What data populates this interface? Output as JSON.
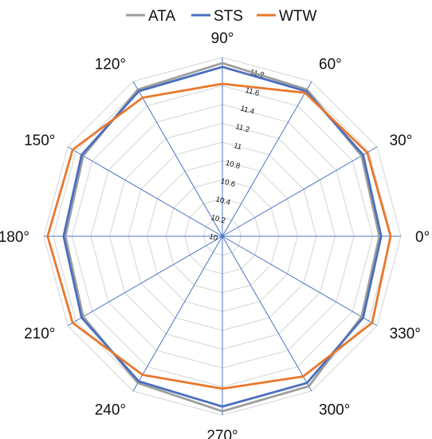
{
  "chart_data": {
    "type": "radar",
    "categories": [
      "0°",
      "30°",
      "60°",
      "90°",
      "120°",
      "150°",
      "180°",
      "210°",
      "240°",
      "270°",
      "300°",
      "330°"
    ],
    "radial_axis": {
      "min": 10,
      "max": 11.9,
      "ticks": [
        10,
        10.2,
        10.4,
        10.6,
        10.8,
        11,
        11.2,
        11.4,
        11.6,
        11.8
      ],
      "tick_labels": [
        "10",
        "10.2",
        "10.4",
        "10.6",
        "10.8",
        "11",
        "11.2",
        "11.4",
        "11.6",
        "11.8"
      ]
    },
    "grid": true,
    "legend_position": "top-center",
    "series": [
      {
        "name": "ATA",
        "color": "#9e9e9e",
        "values": [
          11.67,
          11.71,
          11.8,
          11.84,
          11.8,
          11.71,
          11.67,
          11.71,
          11.8,
          11.86,
          11.84,
          11.71
        ]
      },
      {
        "name": "STS",
        "color": "#4a6fbf",
        "values": [
          11.69,
          11.73,
          11.78,
          11.8,
          11.78,
          11.73,
          11.69,
          11.73,
          11.78,
          11.81,
          11.8,
          11.73
        ]
      },
      {
        "name": "WTW",
        "color": "#e8782d",
        "values": [
          11.79,
          11.78,
          11.76,
          11.62,
          11.7,
          11.84,
          11.86,
          11.84,
          11.7,
          11.62,
          11.72,
          11.84
        ]
      }
    ]
  }
}
